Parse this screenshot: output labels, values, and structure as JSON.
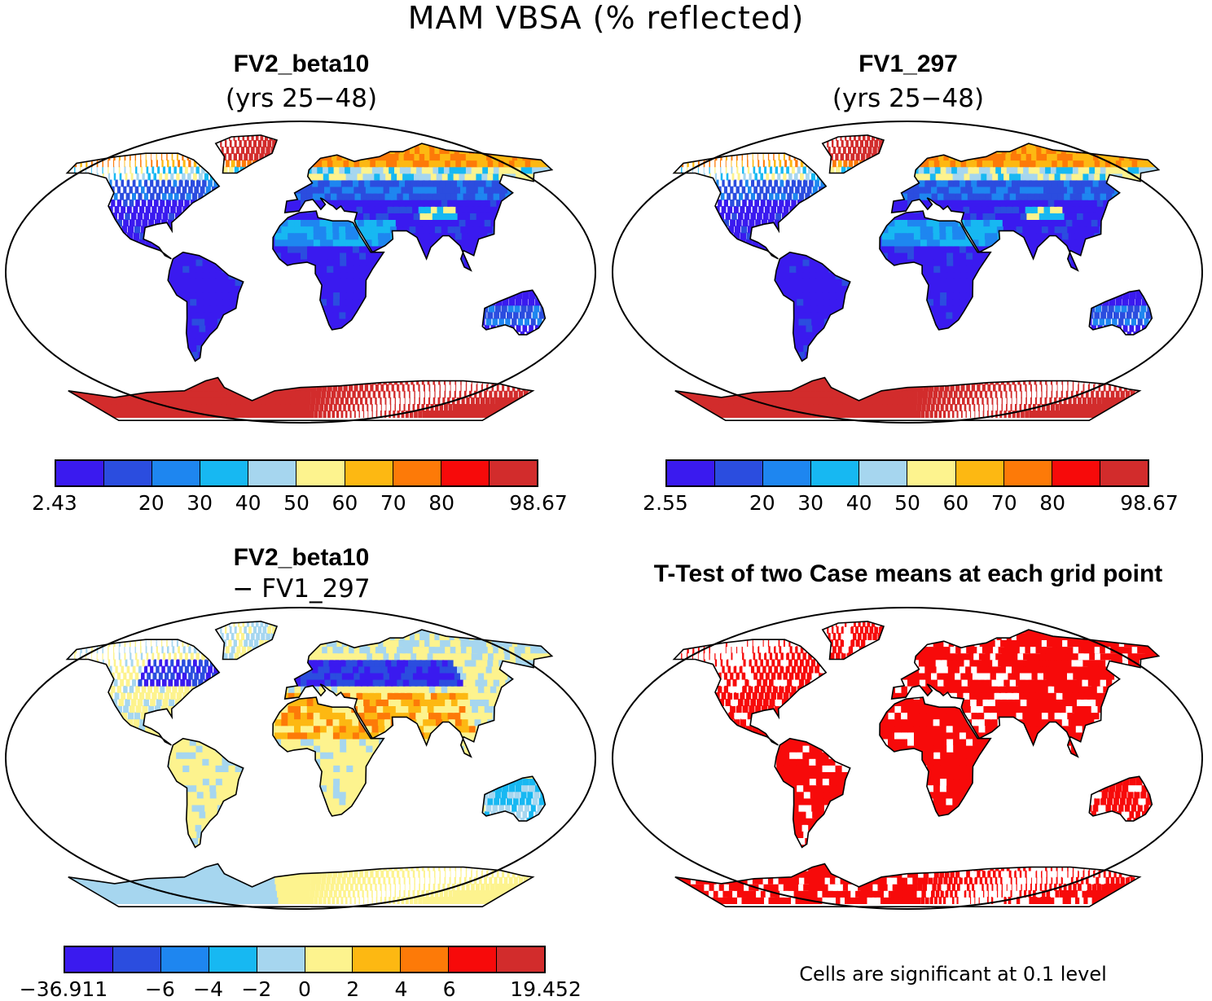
{
  "title": "MAM VBSA (% reflected)",
  "panels": [
    {
      "title": "FV2_beta10",
      "subtitle": "(yrs 25−48)",
      "map": "case1"
    },
    {
      "title": "FV1_297",
      "subtitle": "(yrs 25−48)",
      "map": "case2"
    },
    {
      "title": "FV2_beta10",
      "subtitle": "− FV1_297",
      "map": "difference"
    },
    {
      "title": "T-Test of two Case means at each grid point",
      "subtitle": "",
      "map": "significance"
    }
  ],
  "colorbars": {
    "case1": {
      "colors": [
        "#3a1aef",
        "#2b4ddf",
        "#1e86f0",
        "#17b8f2",
        "#a6d6ef",
        "#fdf38e",
        "#fdb812",
        "#fd7a08",
        "#f70a0a",
        "#d22c2c"
      ],
      "labels": [
        "2.43",
        "20",
        "30",
        "40",
        "50",
        "60",
        "70",
        "80",
        "98.67"
      ]
    },
    "case2": {
      "colors": [
        "#3a1aef",
        "#2b4ddf",
        "#1e86f0",
        "#17b8f2",
        "#a6d6ef",
        "#fdf38e",
        "#fdb812",
        "#fd7a08",
        "#f70a0a",
        "#d22c2c"
      ],
      "labels": [
        "2.55",
        "20",
        "30",
        "40",
        "50",
        "60",
        "70",
        "80",
        "98.67"
      ]
    },
    "difference": {
      "colors": [
        "#3a1aef",
        "#2b4ddf",
        "#1e86f0",
        "#17b8f2",
        "#a6d6ef",
        "#fdf38e",
        "#fdb812",
        "#fd7a08",
        "#f70a0a",
        "#d22c2c"
      ],
      "labels": [
        "−36.911",
        "−6",
        "−4",
        "−2",
        "0",
        "2",
        "4",
        "6",
        "19.452"
      ]
    }
  },
  "significance_note": "Cells are significant at 0.1 level",
  "significance_color": "#f70a0a"
}
